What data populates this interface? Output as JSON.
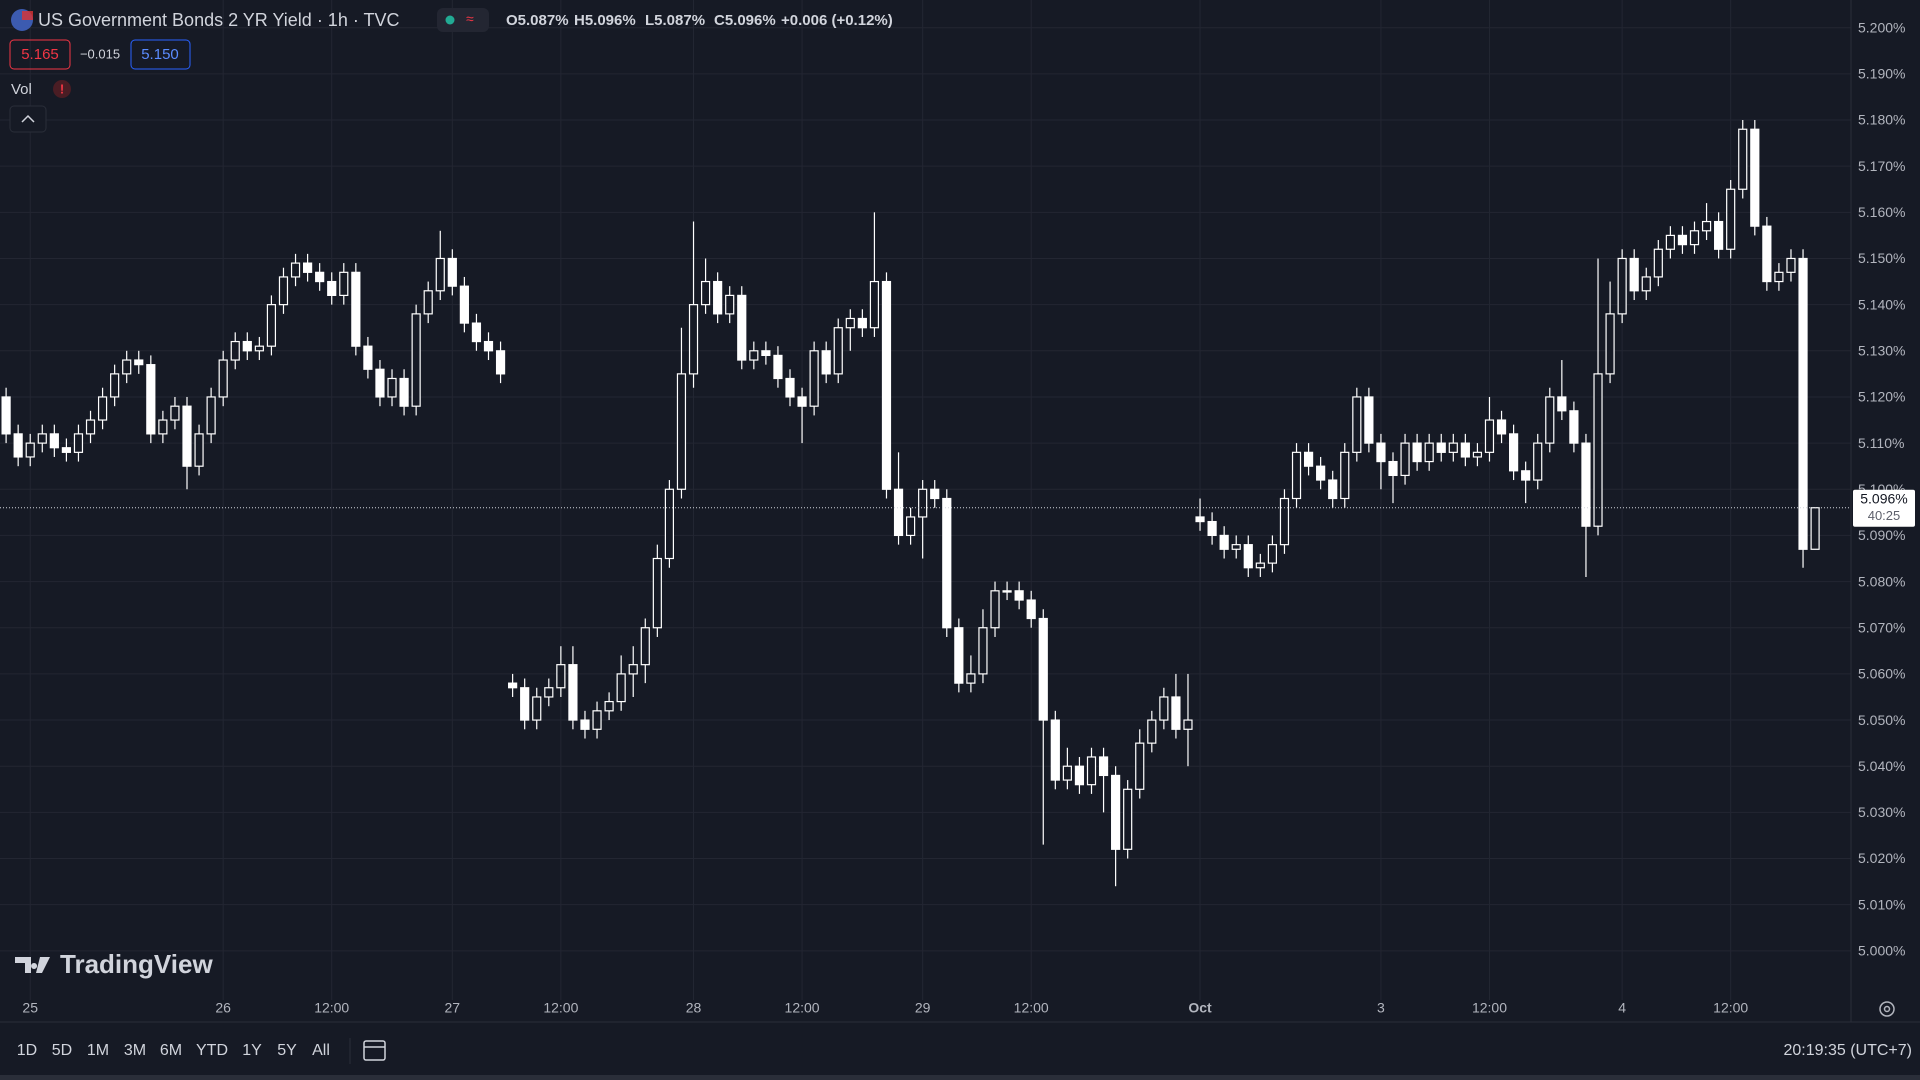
{
  "header": {
    "title": "US Government Bonds 2 YR Yield · 1h · TVC",
    "ohlc": [
      "O5.087%",
      "H5.096%",
      "L5.087%",
      "C5.096%"
    ],
    "change": "+0.006 (+0.12%)"
  },
  "quote": {
    "bid": "5.165",
    "spread": "−0.015",
    "ask": "5.150"
  },
  "indicator": "Vol",
  "logo": "TradingView",
  "chart_data": {
    "type": "candlestick",
    "color": "#ffffff",
    "grid": true,
    "open": [
      5.12,
      5.112,
      5.107,
      5.11,
      5.112,
      5.109,
      5.108,
      5.112,
      5.115,
      5.12,
      5.125,
      5.128,
      5.127,
      5.112,
      5.115,
      5.118,
      5.105,
      5.112,
      5.12,
      5.128,
      5.132,
      5.13,
      5.131,
      5.14,
      5.146,
      5.149,
      5.147,
      5.145,
      5.142,
      5.147,
      5.131,
      5.126,
      5.12,
      5.124,
      5.118,
      5.138,
      5.143,
      5.15,
      5.144,
      5.136,
      5.132,
      5.13,
      5.058,
      5.057,
      5.05,
      5.055,
      5.057,
      5.062,
      5.05,
      5.048,
      5.052,
      5.054,
      5.06,
      5.062,
      5.07,
      5.085,
      5.1,
      5.125,
      5.14,
      5.145,
      5.138,
      5.142,
      5.128,
      5.13,
      5.129,
      5.124,
      5.12,
      5.118,
      5.13,
      5.125,
      5.135,
      5.137,
      5.135,
      5.145,
      5.1,
      5.09,
      5.094,
      5.1,
      5.098,
      5.07,
      5.058,
      5.06,
      5.07,
      5.078,
      5.078,
      5.076,
      5.072,
      5.05,
      5.037,
      5.04,
      5.036,
      5.042,
      5.038,
      5.022,
      5.035,
      5.045,
      5.05,
      5.055,
      5.048,
      5.094,
      5.093,
      5.09,
      5.087,
      5.088,
      5.083,
      5.084,
      5.088,
      5.098,
      5.108,
      5.105,
      5.102,
      5.098,
      5.108,
      5.12,
      5.11,
      5.106,
      5.103,
      5.11,
      5.106,
      5.11,
      5.108,
      5.11,
      5.107,
      5.108,
      5.115,
      5.112,
      5.104,
      5.102,
      5.11,
      5.12,
      5.117,
      5.11,
      5.092,
      5.125,
      5.138,
      5.15,
      5.143,
      5.146,
      5.152,
      5.155,
      5.153,
      5.156,
      5.158,
      5.152,
      5.165,
      5.178,
      5.157,
      5.145,
      5.147,
      5.15,
      5.087
    ],
    "high": [
      5.122,
      5.114,
      5.112,
      5.114,
      5.114,
      5.111,
      5.114,
      5.117,
      5.122,
      5.127,
      5.13,
      5.13,
      5.129,
      5.117,
      5.12,
      5.12,
      5.114,
      5.122,
      5.13,
      5.134,
      5.134,
      5.133,
      5.142,
      5.148,
      5.151,
      5.151,
      5.149,
      5.147,
      5.149,
      5.149,
      5.133,
      5.128,
      5.126,
      5.126,
      5.14,
      5.145,
      5.156,
      5.152,
      5.146,
      5.138,
      5.134,
      5.132,
      5.06,
      5.059,
      5.057,
      5.059,
      5.066,
      5.066,
      5.052,
      5.054,
      5.056,
      5.064,
      5.066,
      5.072,
      5.088,
      5.102,
      5.135,
      5.158,
      5.15,
      5.147,
      5.144,
      5.144,
      5.132,
      5.132,
      5.131,
      5.126,
      5.122,
      5.132,
      5.132,
      5.137,
      5.139,
      5.139,
      5.16,
      5.147,
      5.108,
      5.096,
      5.102,
      5.102,
      5.1,
      5.072,
      5.064,
      5.074,
      5.08,
      5.08,
      5.08,
      5.078,
      5.074,
      5.052,
      5.044,
      5.042,
      5.044,
      5.044,
      5.04,
      5.037,
      5.048,
      5.052,
      5.057,
      5.06,
      5.06,
      5.098,
      5.095,
      5.092,
      5.09,
      5.09,
      5.086,
      5.09,
      5.1,
      5.11,
      5.11,
      5.107,
      5.104,
      5.11,
      5.122,
      5.122,
      5.112,
      5.108,
      5.112,
      5.112,
      5.112,
      5.112,
      5.112,
      5.112,
      5.11,
      5.12,
      5.117,
      5.114,
      5.106,
      5.112,
      5.122,
      5.128,
      5.119,
      5.112,
      5.15,
      5.145,
      5.152,
      5.152,
      5.148,
      5.154,
      5.157,
      5.157,
      5.158,
      5.162,
      5.16,
      5.167,
      5.18,
      5.18,
      5.159,
      5.149,
      5.152,
      5.152,
      5.096
    ],
    "low": [
      5.11,
      5.105,
      5.105,
      5.108,
      5.107,
      5.106,
      5.106,
      5.11,
      5.113,
      5.118,
      5.123,
      5.125,
      5.11,
      5.11,
      5.113,
      5.1,
      5.103,
      5.11,
      5.118,
      5.126,
      5.128,
      5.128,
      5.129,
      5.138,
      5.144,
      5.145,
      5.143,
      5.14,
      5.14,
      5.129,
      5.124,
      5.118,
      5.118,
      5.116,
      5.116,
      5.136,
      5.141,
      5.142,
      5.134,
      5.13,
      5.128,
      5.123,
      5.055,
      5.048,
      5.048,
      5.053,
      5.055,
      5.048,
      5.046,
      5.046,
      5.05,
      5.052,
      5.055,
      5.058,
      5.068,
      5.083,
      5.098,
      5.122,
      5.138,
      5.136,
      5.136,
      5.126,
      5.126,
      5.127,
      5.122,
      5.118,
      5.11,
      5.116,
      5.123,
      5.123,
      5.13,
      5.133,
      5.133,
      5.098,
      5.088,
      5.088,
      5.085,
      5.096,
      5.068,
      5.056,
      5.056,
      5.058,
      5.068,
      5.076,
      5.074,
      5.07,
      5.023,
      5.035,
      5.035,
      5.034,
      5.034,
      5.03,
      5.014,
      5.02,
      5.033,
      5.043,
      5.048,
      5.046,
      5.04,
      5.091,
      5.088,
      5.085,
      5.085,
      5.081,
      5.081,
      5.082,
      5.086,
      5.096,
      5.103,
      5.1,
      5.096,
      5.096,
      5.106,
      5.108,
      5.1,
      5.097,
      5.101,
      5.104,
      5.104,
      5.106,
      5.106,
      5.105,
      5.105,
      5.106,
      5.11,
      5.102,
      5.097,
      5.1,
      5.108,
      5.115,
      5.108,
      5.081,
      5.09,
      5.123,
      5.136,
      5.141,
      5.141,
      5.144,
      5.15,
      5.151,
      5.151,
      5.154,
      5.15,
      5.15,
      5.163,
      5.155,
      5.143,
      5.143,
      5.145,
      5.083,
      5.087
    ],
    "close": [
      5.112,
      5.107,
      5.11,
      5.112,
      5.109,
      5.108,
      5.112,
      5.115,
      5.12,
      5.125,
      5.128,
      5.127,
      5.112,
      5.115,
      5.118,
      5.105,
      5.112,
      5.12,
      5.128,
      5.132,
      5.13,
      5.131,
      5.14,
      5.146,
      5.149,
      5.147,
      5.145,
      5.142,
      5.147,
      5.131,
      5.126,
      5.12,
      5.124,
      5.118,
      5.138,
      5.143,
      5.15,
      5.144,
      5.136,
      5.132,
      5.13,
      5.125,
      5.057,
      5.05,
      5.055,
      5.057,
      5.062,
      5.05,
      5.048,
      5.052,
      5.054,
      5.06,
      5.062,
      5.07,
      5.085,
      5.1,
      5.125,
      5.14,
      5.145,
      5.138,
      5.142,
      5.128,
      5.13,
      5.129,
      5.124,
      5.12,
      5.118,
      5.13,
      5.125,
      5.135,
      5.137,
      5.135,
      5.145,
      5.1,
      5.09,
      5.094,
      5.1,
      5.098,
      5.07,
      5.058,
      5.06,
      5.07,
      5.078,
      5.078,
      5.076,
      5.072,
      5.05,
      5.037,
      5.04,
      5.036,
      5.042,
      5.038,
      5.022,
      5.035,
      5.045,
      5.05,
      5.055,
      5.048,
      5.05,
      5.093,
      5.09,
      5.087,
      5.088,
      5.083,
      5.084,
      5.088,
      5.098,
      5.108,
      5.105,
      5.102,
      5.098,
      5.108,
      5.12,
      5.11,
      5.106,
      5.103,
      5.11,
      5.106,
      5.11,
      5.108,
      5.11,
      5.107,
      5.108,
      5.115,
      5.112,
      5.104,
      5.102,
      5.11,
      5.12,
      5.117,
      5.11,
      5.092,
      5.125,
      5.138,
      5.15,
      5.143,
      5.146,
      5.152,
      5.155,
      5.153,
      5.156,
      5.158,
      5.152,
      5.165,
      5.178,
      5.157,
      5.145,
      5.147,
      5.15,
      5.087,
      5.096
    ],
    "ylim": [
      4.99,
      5.206
    ],
    "yticks": [
      {
        "value": 5.0,
        "label": "5.000%"
      },
      {
        "value": 5.01,
        "label": "5.010%"
      },
      {
        "value": 5.02,
        "label": "5.020%"
      },
      {
        "value": 5.03,
        "label": "5.030%"
      },
      {
        "value": 5.04,
        "label": "5.040%"
      },
      {
        "value": 5.05,
        "label": "5.050%"
      },
      {
        "value": 5.06,
        "label": "5.060%"
      },
      {
        "value": 5.07,
        "label": "5.070%"
      },
      {
        "value": 5.08,
        "label": "5.080%"
      },
      {
        "value": 5.09,
        "label": "5.090%"
      },
      {
        "value": 5.1,
        "label": "5.100%"
      },
      {
        "value": 5.11,
        "label": "5.110%"
      },
      {
        "value": 5.12,
        "label": "5.120%"
      },
      {
        "value": 5.13,
        "label": "5.130%"
      },
      {
        "value": 5.14,
        "label": "5.140%"
      },
      {
        "value": 5.15,
        "label": "5.150%"
      },
      {
        "value": 5.16,
        "label": "5.160%"
      },
      {
        "value": 5.17,
        "label": "5.170%"
      },
      {
        "value": 5.18,
        "label": "5.180%"
      },
      {
        "value": 5.19,
        "label": "5.190%"
      },
      {
        "value": 5.2,
        "label": "5.200%"
      }
    ],
    "xticks": [
      {
        "value": 2,
        "label": "25"
      },
      {
        "value": 18,
        "label": "26"
      },
      {
        "value": 27,
        "label": "12:00"
      },
      {
        "value": 37,
        "label": "27"
      },
      {
        "value": 46,
        "label": "12:00"
      },
      {
        "value": 57,
        "label": "28"
      },
      {
        "value": 66,
        "label": "12:00"
      },
      {
        "value": 76,
        "label": "29"
      },
      {
        "value": 85,
        "label": "12:00"
      },
      {
        "value": 99,
        "label": "Oct"
      },
      {
        "value": 114,
        "label": "3"
      },
      {
        "value": 123,
        "label": "12:00"
      },
      {
        "value": 134,
        "label": "4"
      },
      {
        "value": 143,
        "label": "12:00"
      }
    ],
    "last_price_label": "5.096%",
    "countdown": "40:25"
  },
  "range_buttons": [
    "1D",
    "5D",
    "1M",
    "3M",
    "6M",
    "YTD",
    "1Y",
    "5Y",
    "All"
  ],
  "clock": "20:19:35 (UTC+7)"
}
